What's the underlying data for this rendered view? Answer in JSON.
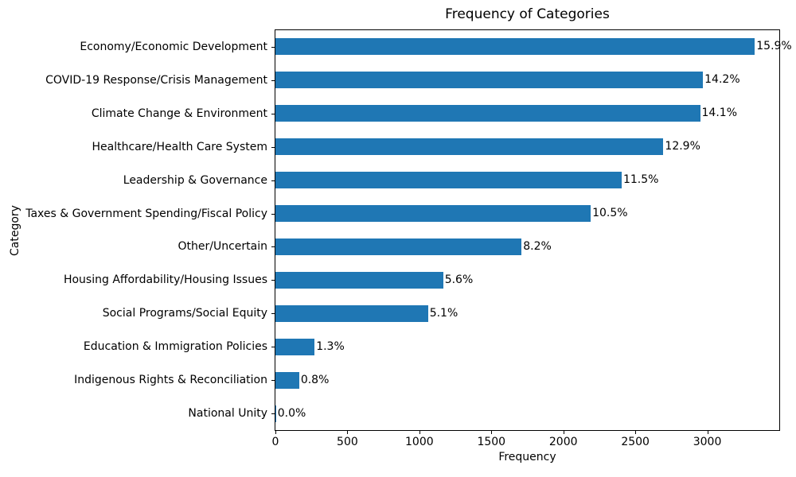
{
  "chart_data": {
    "type": "bar",
    "orientation": "horizontal",
    "title": "Frequency of Categories",
    "xlabel": "Frequency",
    "ylabel": "Category",
    "xlim": [
      0,
      3500
    ],
    "x_ticks": [
      0,
      500,
      1000,
      1500,
      2000,
      2500,
      3000
    ],
    "grid": false,
    "legend": "none",
    "bar_color": "#1f77b4",
    "categories": [
      "Economy/Economic Development",
      "COVID-19 Response/Crisis Management",
      "Climate Change & Environment",
      "Healthcare/Health Care System",
      "Leadership & Governance",
      "Taxes & Government Spending/Fiscal Policy",
      "Other/Uncertain",
      "Housing Affordability/Housing Issues",
      "Social Programs/Social Equity",
      "Education & Immigration Policies",
      "Indigenous Rights & Reconciliation",
      "National Unity"
    ],
    "values": [
      3330,
      2970,
      2950,
      2695,
      2405,
      2190,
      1710,
      1165,
      1060,
      272,
      165,
      4
    ],
    "percent_labels": [
      "15.9%",
      "14.2%",
      "14.1%",
      "12.9%",
      "11.5%",
      "10.5%",
      "8.2%",
      "5.6%",
      "5.1%",
      "1.3%",
      "0.8%",
      "0.0%"
    ]
  }
}
